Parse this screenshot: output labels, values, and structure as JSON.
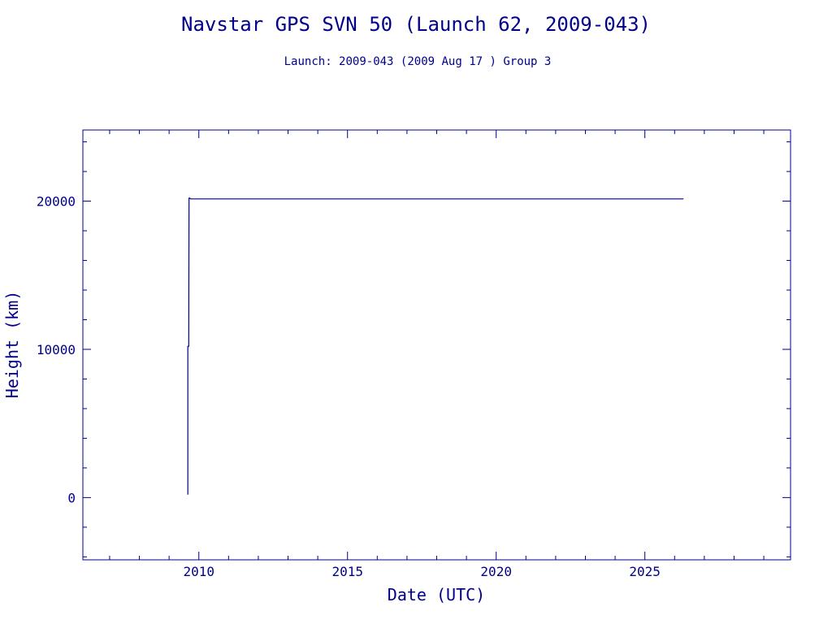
{
  "chart_data": {
    "type": "line",
    "title": "Navstar GPS SVN 50 (Launch 62, 2009-043)",
    "subtitle": "Launch: 2009-043  (2009 Aug 17 )  Group 3",
    "xlabel": "Date (UTC)",
    "ylabel": "Height (km)",
    "xlim": [
      2006.1,
      2029.9
    ],
    "ylim": [
      -4200,
      24800
    ],
    "x_major_ticks": [
      2010,
      2015,
      2020,
      2025
    ],
    "x_tick_labels": [
      "2010",
      "2015",
      "2020",
      "2025"
    ],
    "x_minor_step": 1,
    "y_major_ticks": [
      0,
      10000,
      20000
    ],
    "y_tick_labels": [
      "0",
      "10000",
      "20000"
    ],
    "y_minor_step": 2000,
    "grid": false,
    "legend": "none",
    "color": "#00008b",
    "series": [
      {
        "x": [
          2009.63,
          2009.63,
          2009.66,
          2009.67,
          2009.7,
          2009.72,
          2009.8,
          2026.3
        ],
        "y": [
          200,
          10200,
          10200,
          20200,
          20200,
          20150,
          20150,
          20150
        ]
      }
    ]
  }
}
